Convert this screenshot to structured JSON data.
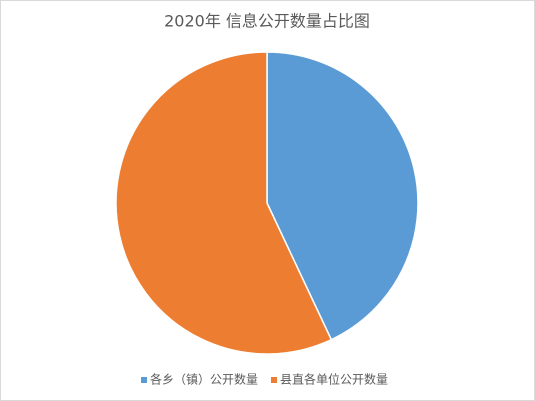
{
  "chart_data": {
    "type": "pie",
    "title": "2020年 信息公开数量占比图",
    "categories": [
      "各乡（镇）公开数量",
      "县直各单位公开数量"
    ],
    "values": [
      43,
      57
    ],
    "colors": [
      "#5b9bd5",
      "#ed7d31"
    ],
    "legend": "bottom"
  }
}
